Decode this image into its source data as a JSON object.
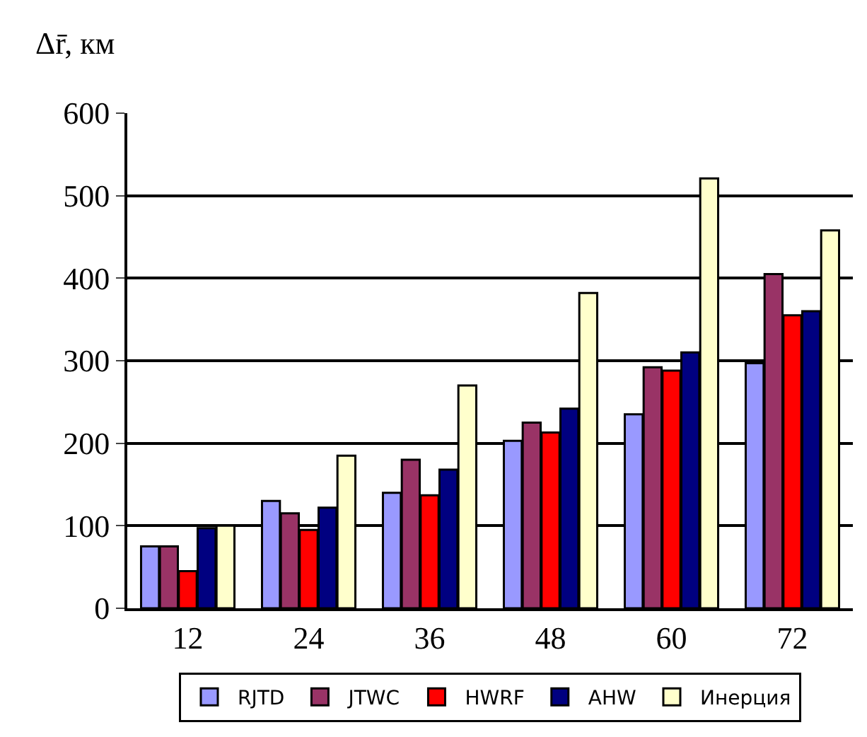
{
  "chart_data": {
    "type": "bar",
    "ylabel": "Δr̄, км",
    "categories": [
      "12",
      "24",
      "36",
      "48",
      "60",
      "72"
    ],
    "series": [
      {
        "name": "RJTD",
        "color": "#9999ff",
        "values": [
          75,
          130,
          140,
          203,
          235,
          297
        ]
      },
      {
        "name": "JTWC",
        "color": "#993366",
        "values": [
          75,
          115,
          180,
          225,
          292,
          405
        ]
      },
      {
        "name": "HWRF",
        "color": "#ff0000",
        "values": [
          45,
          95,
          137,
          213,
          288,
          355
        ]
      },
      {
        "name": "AHW",
        "color": "#000080",
        "values": [
          97,
          122,
          168,
          242,
          310,
          360
        ]
      },
      {
        "name": "Инерция",
        "color": "#ffffcc",
        "values": [
          100,
          185,
          270,
          382,
          521,
          458
        ]
      }
    ],
    "ylim": [
      0,
      600
    ],
    "yticks": [
      0,
      100,
      200,
      300,
      400,
      500,
      600
    ],
    "grid": "y",
    "legend": "bottom"
  }
}
